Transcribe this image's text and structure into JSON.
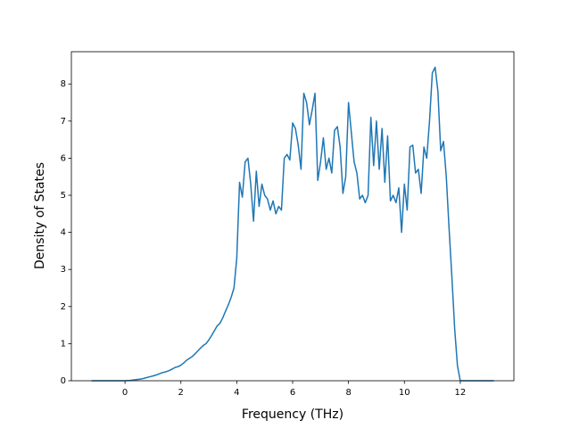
{
  "chart_data": {
    "type": "line",
    "xlabel": "Frequency (THz)",
    "ylabel": "Density of States",
    "x": [
      -1.2,
      -1.1,
      -1.0,
      -0.9,
      -0.8,
      -0.7,
      -0.6,
      -0.5,
      -0.4,
      -0.3,
      -0.2,
      -0.1,
      0.0,
      0.1,
      0.2,
      0.3,
      0.4,
      0.5,
      0.6,
      0.7,
      0.8,
      0.9,
      1.0,
      1.1,
      1.2,
      1.3,
      1.4,
      1.5,
      1.6,
      1.7,
      1.8,
      1.9,
      2.0,
      2.1,
      2.2,
      2.3,
      2.4,
      2.5,
      2.6,
      2.7,
      2.8,
      2.9,
      3.0,
      3.1,
      3.2,
      3.3,
      3.4,
      3.5,
      3.6,
      3.7,
      3.8,
      3.9,
      4.0,
      4.1,
      4.2,
      4.3,
      4.4,
      4.5,
      4.6,
      4.7,
      4.8,
      4.9,
      5.0,
      5.1,
      5.2,
      5.3,
      5.4,
      5.5,
      5.6,
      5.7,
      5.8,
      5.9,
      6.0,
      6.1,
      6.2,
      6.3,
      6.4,
      6.5,
      6.6,
      6.7,
      6.8,
      6.9,
      7.0,
      7.1,
      7.2,
      7.3,
      7.4,
      7.5,
      7.6,
      7.7,
      7.8,
      7.9,
      8.0,
      8.1,
      8.2,
      8.3,
      8.4,
      8.5,
      8.6,
      8.7,
      8.8,
      8.9,
      9.0,
      9.1,
      9.2,
      9.3,
      9.4,
      9.5,
      9.6,
      9.7,
      9.8,
      9.9,
      10.0,
      10.1,
      10.2,
      10.3,
      10.4,
      10.5,
      10.6,
      10.7,
      10.8,
      10.9,
      11.0,
      11.1,
      11.2,
      11.3,
      11.4,
      11.5,
      11.6,
      11.7,
      11.8,
      11.9,
      12.0,
      12.1,
      12.2,
      12.3,
      12.4,
      12.5,
      12.6,
      12.7,
      12.8,
      12.9,
      13.0,
      13.1,
      13.2
    ],
    "series": [
      {
        "name": "DOS",
        "color": "#1f77b4",
        "values": [
          0,
          0,
          0,
          0,
          0,
          0,
          0,
          0,
          0,
          0,
          0,
          0,
          0,
          0.005,
          0.01,
          0.02,
          0.03,
          0.04,
          0.05,
          0.07,
          0.09,
          0.11,
          0.13,
          0.15,
          0.18,
          0.21,
          0.23,
          0.25,
          0.28,
          0.32,
          0.36,
          0.38,
          0.42,
          0.48,
          0.55,
          0.6,
          0.65,
          0.72,
          0.8,
          0.88,
          0.95,
          1.0,
          1.1,
          1.22,
          1.35,
          1.48,
          1.55,
          1.7,
          1.88,
          2.05,
          2.25,
          2.5,
          3.3,
          5.35,
          4.95,
          5.9,
          6.0,
          5.3,
          4.3,
          5.65,
          4.7,
          5.3,
          5.0,
          4.9,
          4.6,
          4.85,
          4.5,
          4.7,
          4.6,
          6.0,
          6.1,
          5.95,
          6.95,
          6.8,
          6.35,
          5.7,
          7.75,
          7.5,
          6.9,
          7.3,
          7.75,
          5.4,
          5.9,
          6.55,
          5.7,
          6.0,
          5.6,
          6.75,
          6.85,
          6.3,
          5.05,
          5.5,
          7.5,
          6.7,
          5.9,
          5.6,
          4.9,
          5.0,
          4.8,
          5.0,
          7.1,
          5.8,
          7.0,
          5.7,
          6.8,
          5.35,
          6.6,
          4.85,
          5.0,
          4.8,
          5.2,
          4.0,
          5.3,
          4.6,
          6.3,
          6.35,
          5.6,
          5.7,
          5.05,
          6.3,
          6.0,
          7.0,
          8.3,
          8.45,
          7.8,
          6.2,
          6.45,
          5.5,
          4.1,
          2.8,
          1.4,
          0.4,
          0,
          0,
          0,
          0,
          0,
          0,
          0,
          0,
          0,
          0,
          0,
          0,
          0
        ]
      }
    ],
    "xlim": [
      -1.92,
      13.92
    ],
    "xticks": [
      0,
      2,
      4,
      6,
      8,
      10,
      12
    ],
    "ylim": [
      0,
      8.87
    ],
    "yticks": [
      0,
      1,
      2,
      3,
      4,
      5,
      6,
      7,
      8
    ]
  }
}
